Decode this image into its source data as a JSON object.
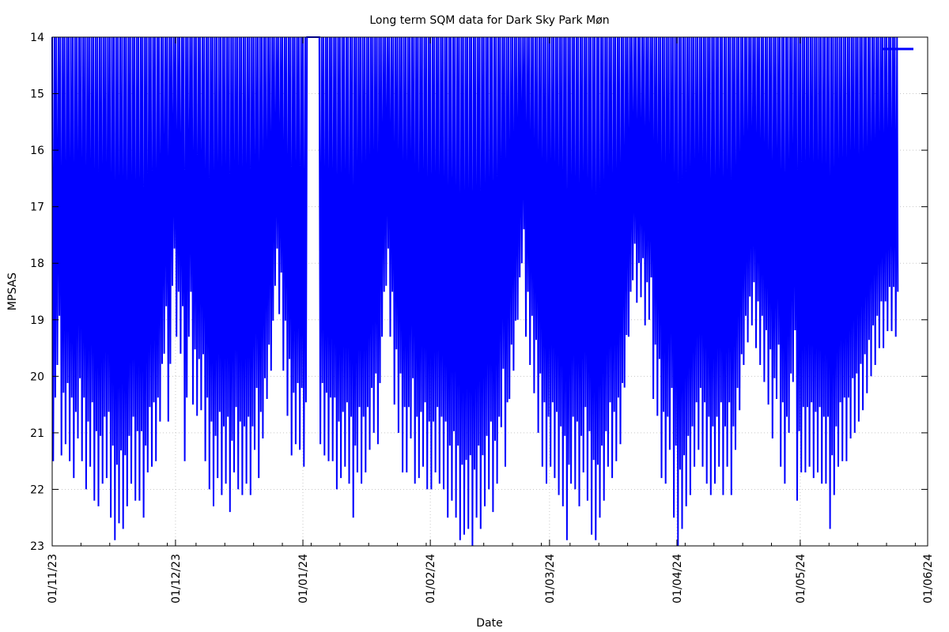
{
  "chart_data": {
    "type": "line",
    "title": "Long term SQM data for Dark Sky Park Møn",
    "xlabel": "Date",
    "ylabel": "MPSAS",
    "y_inverted": true,
    "ylim": [
      23,
      14
    ],
    "xlim": [
      "2023-11-01",
      "2024-06-01"
    ],
    "y_ticks": [
      14,
      15,
      16,
      17,
      18,
      19,
      20,
      21,
      22,
      23
    ],
    "x_ticks": [
      {
        "date": "2023-11-01",
        "label": "01/11/23"
      },
      {
        "date": "2023-12-01",
        "label": "01/12/23"
      },
      {
        "date": "2024-01-01",
        "label": "01/01/24"
      },
      {
        "date": "2024-02-01",
        "label": "01/02/24"
      },
      {
        "date": "2024-03-01",
        "label": "01/03/24"
      },
      {
        "date": "2024-04-01",
        "label": "01/04/24"
      },
      {
        "date": "2024-05-01",
        "label": "01/05/24"
      },
      {
        "date": "2024-06-01",
        "label": "01/06/24"
      }
    ],
    "grid": true,
    "legend": "top-right",
    "series": [
      {
        "color": "#0000ff",
        "points": [
          [
            "2023-11-01",
            21.5
          ],
          [
            "2023-11-02",
            19.8
          ],
          [
            "2023-11-03",
            21.4
          ],
          [
            "2023-11-04",
            21.2
          ],
          [
            "2023-11-05",
            21.5
          ],
          [
            "2023-11-06",
            21.8
          ],
          [
            "2023-11-07",
            21.1
          ],
          [
            "2023-11-08",
            21.5
          ],
          [
            "2023-11-09",
            22.0
          ],
          [
            "2023-11-10",
            21.6
          ],
          [
            "2023-11-11",
            22.2
          ],
          [
            "2023-11-12",
            22.3
          ],
          [
            "2023-11-13",
            21.9
          ],
          [
            "2023-11-14",
            21.8
          ],
          [
            "2023-11-15",
            22.5
          ],
          [
            "2023-11-16",
            22.9
          ],
          [
            "2023-11-17",
            22.6
          ],
          [
            "2023-11-18",
            22.7
          ],
          [
            "2023-11-19",
            22.3
          ],
          [
            "2023-11-20",
            21.9
          ],
          [
            "2023-11-21",
            22.2
          ],
          [
            "2023-11-22",
            22.2
          ],
          [
            "2023-11-23",
            22.5
          ],
          [
            "2023-11-24",
            21.7
          ],
          [
            "2023-11-25",
            21.6
          ],
          [
            "2023-11-26",
            21.5
          ],
          [
            "2023-11-27",
            20.8
          ],
          [
            "2023-11-28",
            19.6
          ],
          [
            "2023-11-29",
            20.8
          ],
          [
            "2023-11-30",
            18.4
          ],
          [
            "2023-12-01",
            19.3
          ],
          [
            "2023-12-02",
            19.6
          ],
          [
            "2023-12-03",
            21.5
          ],
          [
            "2023-12-04",
            19.3
          ],
          [
            "2023-12-05",
            20.5
          ],
          [
            "2023-12-06",
            20.7
          ],
          [
            "2023-12-07",
            20.6
          ],
          [
            "2023-12-08",
            21.5
          ],
          [
            "2023-12-09",
            22.0
          ],
          [
            "2023-12-10",
            22.3
          ],
          [
            "2023-12-11",
            21.8
          ],
          [
            "2023-12-12",
            22.1
          ],
          [
            "2023-12-13",
            21.9
          ],
          [
            "2023-12-14",
            22.4
          ],
          [
            "2023-12-15",
            21.7
          ],
          [
            "2023-12-16",
            22.0
          ],
          [
            "2023-12-17",
            22.1
          ],
          [
            "2023-12-18",
            21.9
          ],
          [
            "2023-12-19",
            22.1
          ],
          [
            "2023-12-20",
            21.3
          ],
          [
            "2023-12-21",
            21.8
          ],
          [
            "2023-12-22",
            21.1
          ],
          [
            "2023-12-23",
            20.4
          ],
          [
            "2023-12-24",
            19.9
          ],
          [
            "2023-12-25",
            18.4
          ],
          [
            "2023-12-26",
            18.9
          ],
          [
            "2023-12-27",
            19.9
          ],
          [
            "2023-12-28",
            20.7
          ],
          [
            "2023-12-29",
            21.4
          ],
          [
            "2023-12-30",
            21.2
          ],
          [
            "2023-12-31",
            21.3
          ],
          [
            "2024-01-01",
            21.6
          ],
          [
            "2024-01-02",
            14.0
          ],
          [
            "2024-01-03",
            14.0
          ],
          [
            "2024-01-04",
            14.0
          ],
          [
            "2024-01-05",
            21.2
          ],
          [
            "2024-01-06",
            21.4
          ],
          [
            "2024-01-07",
            21.5
          ],
          [
            "2024-01-08",
            21.5
          ],
          [
            "2024-01-09",
            22.0
          ],
          [
            "2024-01-10",
            21.8
          ],
          [
            "2024-01-11",
            21.6
          ],
          [
            "2024-01-12",
            21.9
          ],
          [
            "2024-01-13",
            22.5
          ],
          [
            "2024-01-14",
            21.7
          ],
          [
            "2024-01-15",
            21.9
          ],
          [
            "2024-01-16",
            21.7
          ],
          [
            "2024-01-17",
            21.3
          ],
          [
            "2024-01-18",
            21.0
          ],
          [
            "2024-01-19",
            21.2
          ],
          [
            "2024-01-20",
            19.3
          ],
          [
            "2024-01-21",
            18.4
          ],
          [
            "2024-01-22",
            19.3
          ],
          [
            "2024-01-23",
            20.5
          ],
          [
            "2024-01-24",
            21.0
          ],
          [
            "2024-01-25",
            21.7
          ],
          [
            "2024-01-26",
            21.7
          ],
          [
            "2024-01-27",
            21.1
          ],
          [
            "2024-01-28",
            21.9
          ],
          [
            "2024-01-29",
            21.8
          ],
          [
            "2024-01-30",
            21.6
          ],
          [
            "2024-01-31",
            22.0
          ],
          [
            "2024-02-01",
            22.0
          ],
          [
            "2024-02-02",
            21.7
          ],
          [
            "2024-02-03",
            21.9
          ],
          [
            "2024-02-04",
            22.0
          ],
          [
            "2024-02-05",
            22.5
          ],
          [
            "2024-02-06",
            22.2
          ],
          [
            "2024-02-07",
            22.5
          ],
          [
            "2024-02-08",
            22.9
          ],
          [
            "2024-02-09",
            22.8
          ],
          [
            "2024-02-10",
            22.7
          ],
          [
            "2024-02-11",
            23.0
          ],
          [
            "2024-02-12",
            22.5
          ],
          [
            "2024-02-13",
            22.7
          ],
          [
            "2024-02-14",
            22.3
          ],
          [
            "2024-02-15",
            22.0
          ],
          [
            "2024-02-16",
            22.4
          ],
          [
            "2024-02-17",
            21.9
          ],
          [
            "2024-02-18",
            20.9
          ],
          [
            "2024-02-19",
            21.6
          ],
          [
            "2024-02-20",
            20.4
          ],
          [
            "2024-02-21",
            19.9
          ],
          [
            "2024-02-22",
            19.0
          ],
          [
            "2024-02-23",
            18.0
          ],
          [
            "2024-02-24",
            19.3
          ],
          [
            "2024-02-25",
            19.8
          ],
          [
            "2024-02-26",
            20.3
          ],
          [
            "2024-02-27",
            21.0
          ],
          [
            "2024-02-28",
            21.6
          ],
          [
            "2024-02-29",
            21.9
          ],
          [
            "2024-03-01",
            21.6
          ],
          [
            "2024-03-02",
            21.8
          ],
          [
            "2024-03-03",
            22.1
          ],
          [
            "2024-03-04",
            22.3
          ],
          [
            "2024-03-05",
            22.9
          ],
          [
            "2024-03-06",
            21.9
          ],
          [
            "2024-03-07",
            22.0
          ],
          [
            "2024-03-08",
            22.3
          ],
          [
            "2024-03-09",
            21.7
          ],
          [
            "2024-03-10",
            22.2
          ],
          [
            "2024-03-11",
            22.8
          ],
          [
            "2024-03-12",
            22.9
          ],
          [
            "2024-03-13",
            22.5
          ],
          [
            "2024-03-14",
            22.2
          ],
          [
            "2024-03-15",
            21.6
          ],
          [
            "2024-03-16",
            21.8
          ],
          [
            "2024-03-17",
            21.5
          ],
          [
            "2024-03-18",
            21.2
          ],
          [
            "2024-03-19",
            20.2
          ],
          [
            "2024-03-20",
            19.3
          ],
          [
            "2024-03-21",
            18.3
          ],
          [
            "2024-03-22",
            18.7
          ],
          [
            "2024-03-23",
            18.6
          ],
          [
            "2024-03-24",
            19.1
          ],
          [
            "2024-03-25",
            19.0
          ],
          [
            "2024-03-26",
            20.4
          ],
          [
            "2024-03-27",
            20.7
          ],
          [
            "2024-03-28",
            21.8
          ],
          [
            "2024-03-29",
            21.9
          ],
          [
            "2024-03-30",
            21.3
          ],
          [
            "2024-03-31",
            22.5
          ],
          [
            "2024-04-01",
            23.0
          ],
          [
            "2024-04-02",
            22.7
          ],
          [
            "2024-04-03",
            22.3
          ],
          [
            "2024-04-04",
            22.1
          ],
          [
            "2024-04-05",
            21.6
          ],
          [
            "2024-04-06",
            21.3
          ],
          [
            "2024-04-07",
            21.6
          ],
          [
            "2024-04-08",
            21.9
          ],
          [
            "2024-04-09",
            22.1
          ],
          [
            "2024-04-10",
            21.9
          ],
          [
            "2024-04-11",
            21.6
          ],
          [
            "2024-04-12",
            22.1
          ],
          [
            "2024-04-13",
            21.6
          ],
          [
            "2024-04-14",
            22.1
          ],
          [
            "2024-04-15",
            21.3
          ],
          [
            "2024-04-16",
            20.6
          ],
          [
            "2024-04-17",
            19.8
          ],
          [
            "2024-04-18",
            19.4
          ],
          [
            "2024-04-19",
            19.1
          ],
          [
            "2024-04-20",
            19.5
          ],
          [
            "2024-04-21",
            19.8
          ],
          [
            "2024-04-22",
            20.1
          ],
          [
            "2024-04-23",
            20.5
          ],
          [
            "2024-04-24",
            21.1
          ],
          [
            "2024-04-25",
            20.4
          ],
          [
            "2024-04-26",
            21.6
          ],
          [
            "2024-04-27",
            21.9
          ],
          [
            "2024-04-28",
            21.0
          ],
          [
            "2024-04-29",
            20.1
          ],
          [
            "2024-04-30",
            22.2
          ],
          [
            "2024-05-01",
            21.7
          ],
          [
            "2024-05-02",
            21.7
          ],
          [
            "2024-05-03",
            21.6
          ],
          [
            "2024-05-04",
            21.8
          ],
          [
            "2024-05-05",
            21.7
          ],
          [
            "2024-05-06",
            21.9
          ],
          [
            "2024-05-07",
            21.9
          ],
          [
            "2024-05-08",
            22.7
          ],
          [
            "2024-05-09",
            22.1
          ],
          [
            "2024-05-10",
            21.6
          ],
          [
            "2024-05-11",
            21.5
          ],
          [
            "2024-05-12",
            21.5
          ],
          [
            "2024-05-13",
            21.1
          ],
          [
            "2024-05-14",
            21.0
          ],
          [
            "2024-05-15",
            20.8
          ],
          [
            "2024-05-16",
            20.6
          ],
          [
            "2024-05-17",
            20.3
          ],
          [
            "2024-05-18",
            20.0
          ],
          [
            "2024-05-19",
            19.8
          ],
          [
            "2024-05-20",
            19.5
          ],
          [
            "2024-05-21",
            19.5
          ],
          [
            "2024-05-22",
            19.2
          ],
          [
            "2024-05-23",
            19.2
          ],
          [
            "2024-05-24",
            19.3
          ]
        ]
      }
    ]
  }
}
